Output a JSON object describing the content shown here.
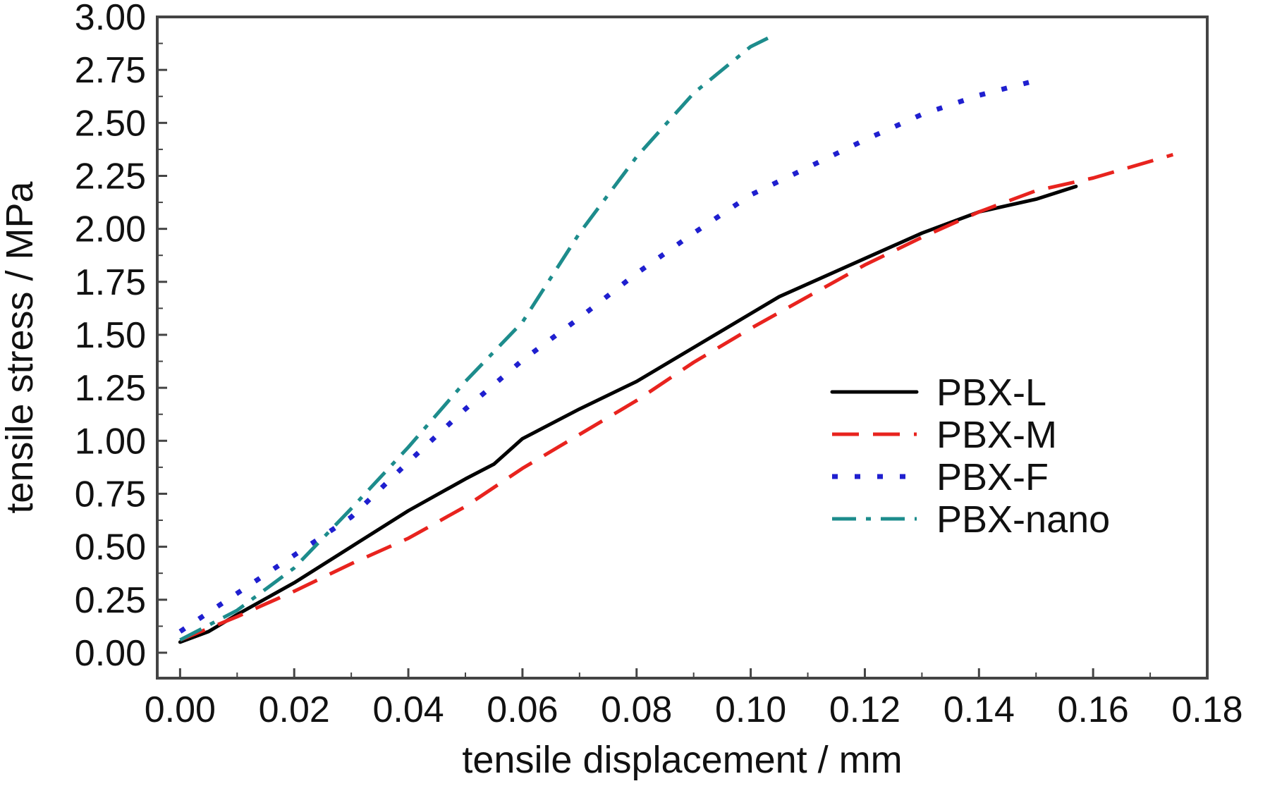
{
  "chart_data": {
    "type": "line",
    "xlabel": "tensile displacement / mm",
    "ylabel": "tensile stress / MPa",
    "xlim": [
      -0.004,
      0.18
    ],
    "ylim": [
      -0.12,
      3.0
    ],
    "xticks": [
      "0.00",
      "0.02",
      "0.04",
      "0.06",
      "0.08",
      "0.10",
      "0.12",
      "0.14",
      "0.16",
      "0.18"
    ],
    "yticks": [
      "0.00",
      "0.25",
      "0.50",
      "0.75",
      "1.00",
      "1.25",
      "1.50",
      "1.75",
      "2.00",
      "2.25",
      "2.50",
      "2.75",
      "3.00"
    ],
    "grid": false,
    "legend_position": "center-right",
    "series": [
      {
        "name": "PBX-L",
        "color": "#000000",
        "dash": "solid",
        "x": [
          0.0,
          0.005,
          0.01,
          0.02,
          0.03,
          0.04,
          0.05,
          0.055,
          0.06,
          0.07,
          0.08,
          0.09,
          0.1,
          0.105,
          0.11,
          0.12,
          0.13,
          0.14,
          0.15,
          0.157
        ],
        "y": [
          0.05,
          0.1,
          0.18,
          0.33,
          0.5,
          0.67,
          0.82,
          0.89,
          1.01,
          1.15,
          1.28,
          1.44,
          1.6,
          1.68,
          1.74,
          1.86,
          1.98,
          2.08,
          2.14,
          2.2
        ]
      },
      {
        "name": "PBX-M",
        "color": "#e8231e",
        "dash": "long-dash",
        "x": [
          0.0,
          0.01,
          0.02,
          0.03,
          0.04,
          0.05,
          0.06,
          0.07,
          0.08,
          0.09,
          0.1,
          0.11,
          0.12,
          0.13,
          0.14,
          0.15,
          0.16,
          0.174
        ],
        "y": [
          0.06,
          0.17,
          0.29,
          0.42,
          0.54,
          0.69,
          0.87,
          1.03,
          1.19,
          1.37,
          1.53,
          1.68,
          1.83,
          1.96,
          2.08,
          2.18,
          2.24,
          2.35
        ]
      },
      {
        "name": "PBX-F",
        "color": "#1f1fcf",
        "dash": "dotted",
        "x": [
          0.0,
          0.01,
          0.02,
          0.03,
          0.04,
          0.05,
          0.06,
          0.07,
          0.08,
          0.09,
          0.1,
          0.11,
          0.12,
          0.13,
          0.14,
          0.15
        ],
        "y": [
          0.1,
          0.28,
          0.46,
          0.64,
          0.9,
          1.15,
          1.38,
          1.58,
          1.79,
          1.98,
          2.16,
          2.29,
          2.42,
          2.54,
          2.63,
          2.7
        ]
      },
      {
        "name": "PBX-nano",
        "color": "#1d8c8c",
        "dash": "dash-dot",
        "x": [
          0.0,
          0.01,
          0.02,
          0.03,
          0.04,
          0.05,
          0.06,
          0.07,
          0.08,
          0.09,
          0.1,
          0.103
        ],
        "y": [
          0.06,
          0.2,
          0.4,
          0.68,
          0.97,
          1.28,
          1.56,
          1.98,
          2.34,
          2.64,
          2.86,
          2.9
        ]
      }
    ]
  }
}
